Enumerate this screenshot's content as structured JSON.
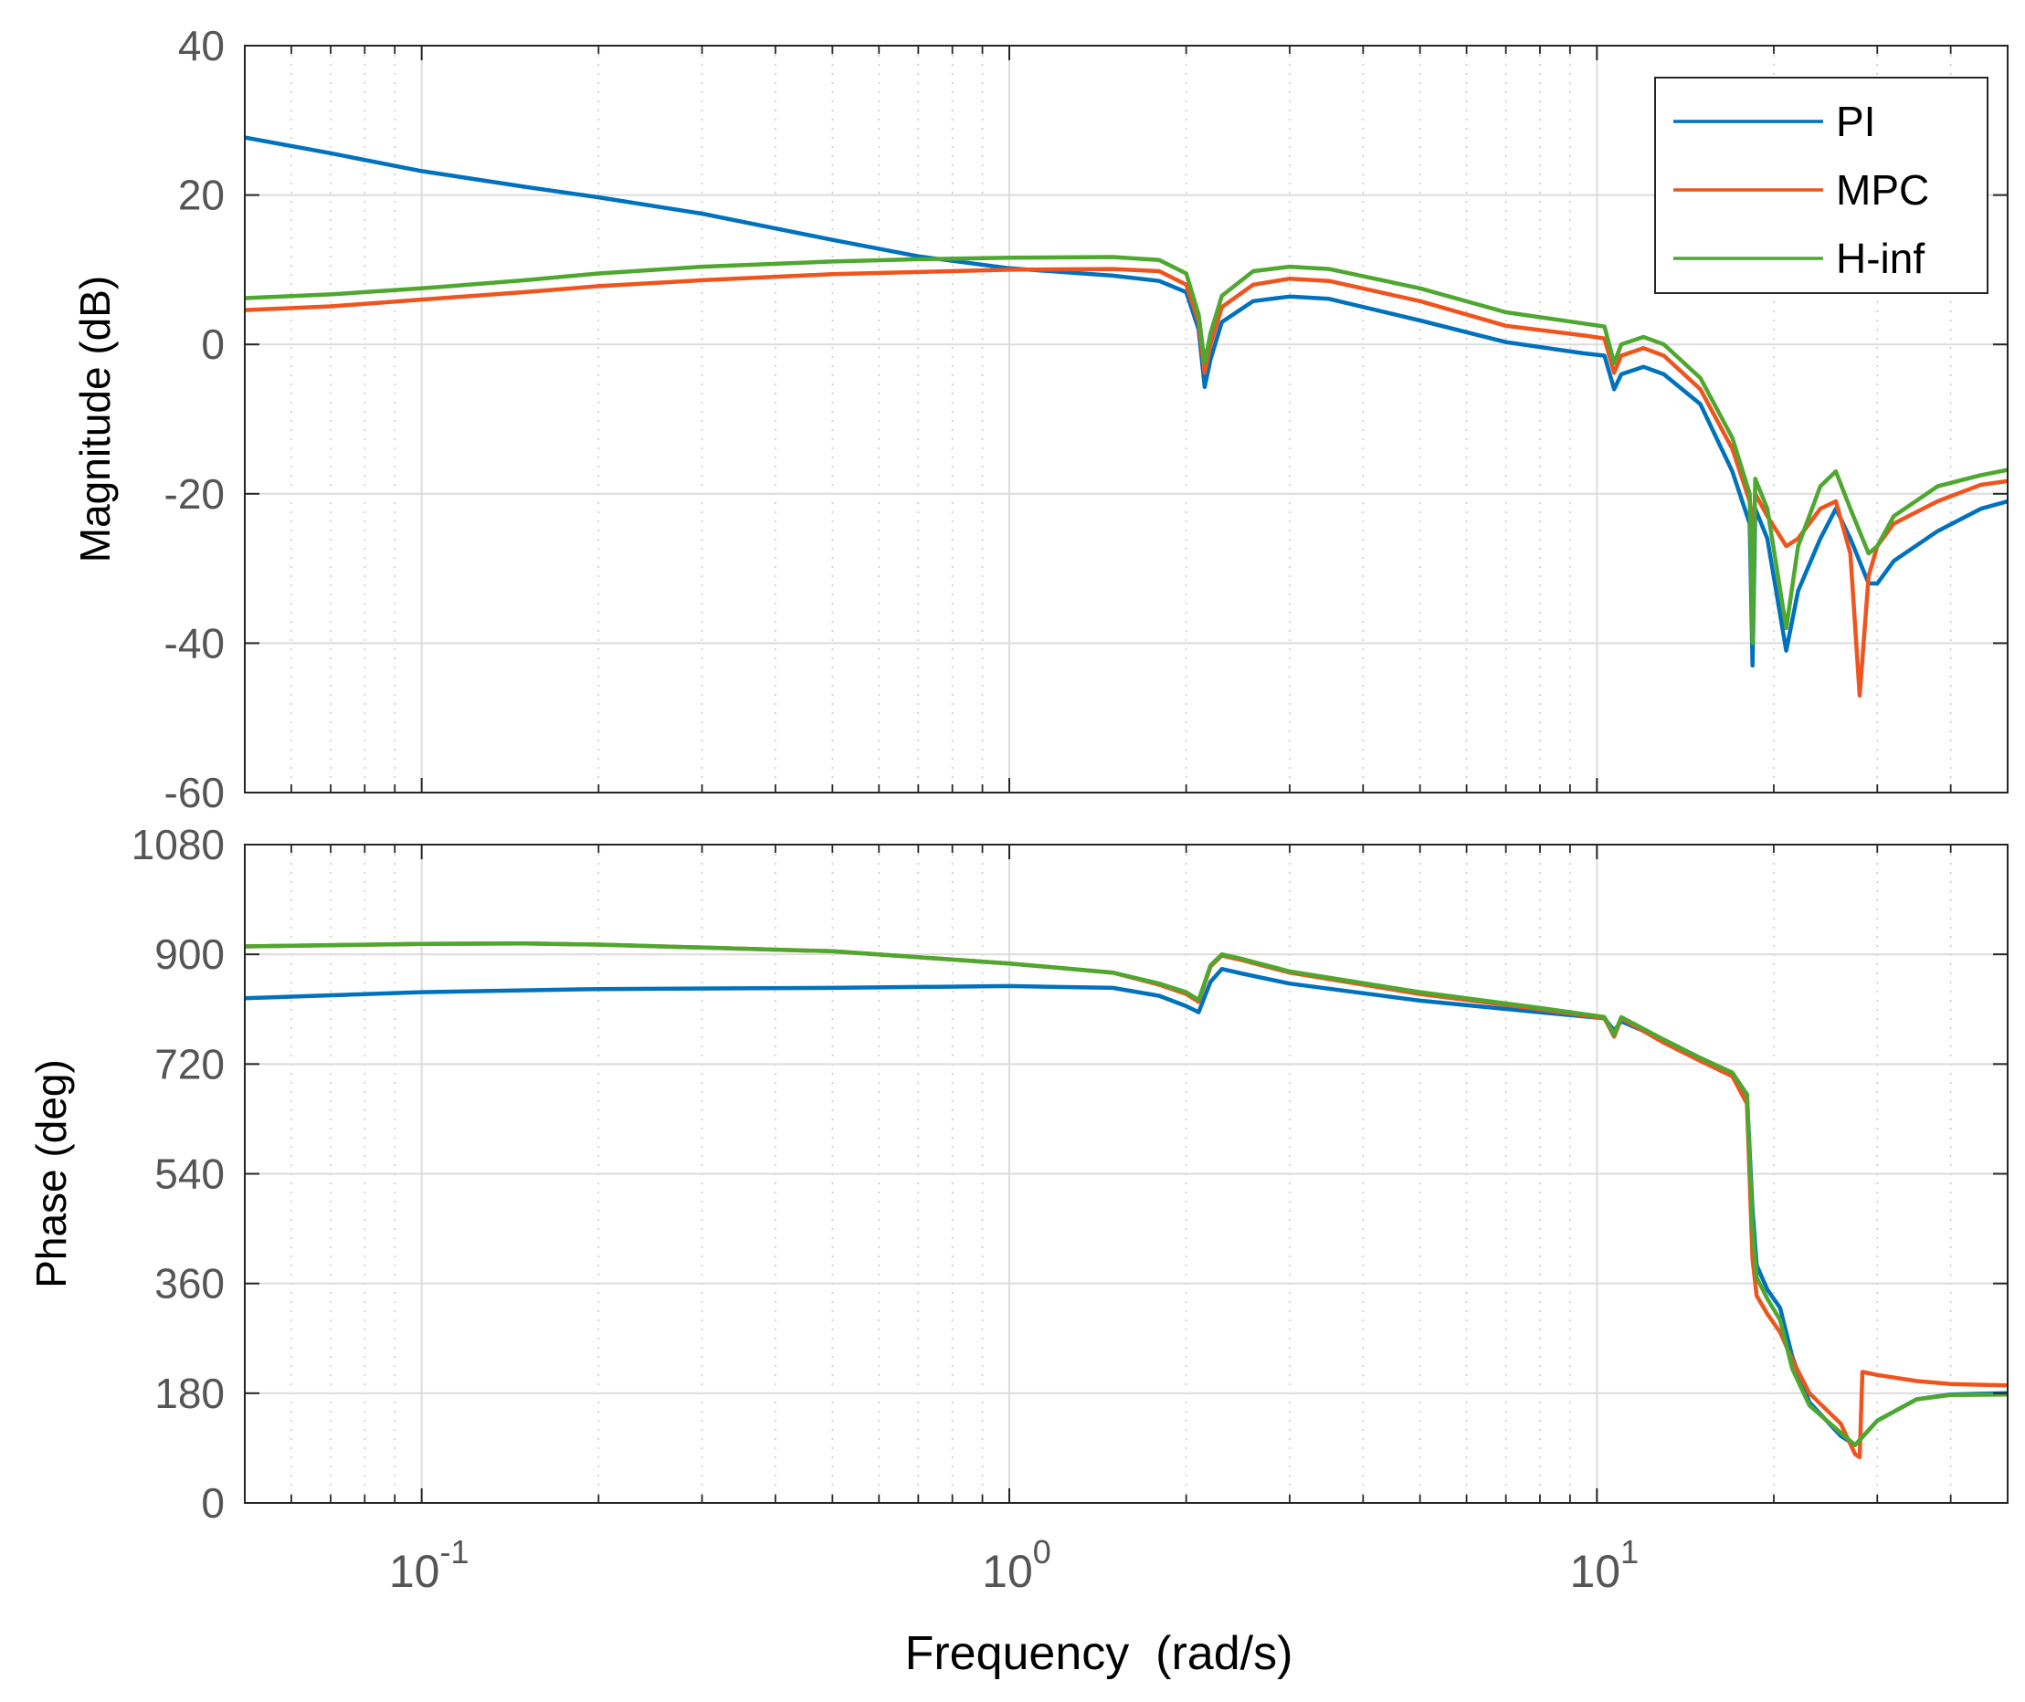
{
  "colors": {
    "series": [
      "#0072BD",
      "#F0541E",
      "#4EA72E"
    ],
    "axis": "#262626",
    "grid_major": "#dcdcdc",
    "grid_minor": "#c8c8c8",
    "tick_text": "#555555"
  },
  "chart_data": [
    {
      "type": "line",
      "xscale": "log",
      "xlim": [
        0.05,
        50
      ],
      "ylim": [
        -60,
        40
      ],
      "title": "",
      "xlabel": "",
      "ylabel": "Magnitude (dB)",
      "yticks": [
        40,
        20,
        0,
        -20,
        -40,
        -60
      ],
      "yticklabels": [
        "40",
        "20",
        "0",
        "-20",
        "-40",
        "-60"
      ],
      "grid": true,
      "legend_position": "top-right",
      "series": [
        {
          "name": "PI",
          "points": [
            [
              0.05,
              27.7
            ],
            [
              0.07,
              25.6
            ],
            [
              0.1,
              23.2
            ],
            [
              0.15,
              21.1
            ],
            [
              0.2,
              19.7
            ],
            [
              0.3,
              17.5
            ],
            [
              0.5,
              14.0
            ],
            [
              0.7,
              11.8
            ],
            [
              1.0,
              10.2
            ],
            [
              1.5,
              9.2
            ],
            [
              1.8,
              8.5
            ],
            [
              2.0,
              7.0
            ],
            [
              2.1,
              2.0
            ],
            [
              2.15,
              -5.7
            ],
            [
              2.2,
              -2.0
            ],
            [
              2.3,
              3.0
            ],
            [
              2.6,
              5.8
            ],
            [
              3.0,
              6.4
            ],
            [
              3.5,
              6.1
            ],
            [
              5.0,
              3.2
            ],
            [
              7.0,
              0.3
            ],
            [
              9.5,
              -1.2
            ],
            [
              10.3,
              -1.5
            ],
            [
              10.7,
              -6.0
            ],
            [
              11.0,
              -4.0
            ],
            [
              12.0,
              -3.0
            ],
            [
              13.0,
              -4.0
            ],
            [
              15.0,
              -8.0
            ],
            [
              17.0,
              -17.0
            ],
            [
              18.2,
              -24.0
            ],
            [
              18.4,
              -43.0
            ],
            [
              18.6,
              -22.0
            ],
            [
              19.5,
              -26.0
            ],
            [
              21.0,
              -41.0
            ],
            [
              22.0,
              -33.0
            ],
            [
              24.0,
              -26.0
            ],
            [
              25.5,
              -22.0
            ],
            [
              27.0,
              -26.0
            ],
            [
              29.0,
              -32.0
            ],
            [
              30.0,
              -32.0
            ],
            [
              32.0,
              -29.0
            ],
            [
              38.0,
              -25.0
            ],
            [
              45.0,
              -22.0
            ],
            [
              50.0,
              -21.0
            ]
          ]
        },
        {
          "name": "MPC",
          "points": [
            [
              0.05,
              4.6
            ],
            [
              0.07,
              5.1
            ],
            [
              0.1,
              6.0
            ],
            [
              0.15,
              7.0
            ],
            [
              0.2,
              7.8
            ],
            [
              0.3,
              8.6
            ],
            [
              0.5,
              9.4
            ],
            [
              0.7,
              9.7
            ],
            [
              1.0,
              10.0
            ],
            [
              1.5,
              10.1
            ],
            [
              1.8,
              9.8
            ],
            [
              2.0,
              8.0
            ],
            [
              2.1,
              3.0
            ],
            [
              2.15,
              -3.8
            ],
            [
              2.2,
              0.0
            ],
            [
              2.3,
              5.0
            ],
            [
              2.6,
              8.0
            ],
            [
              3.0,
              8.8
            ],
            [
              3.5,
              8.5
            ],
            [
              5.0,
              5.8
            ],
            [
              7.0,
              2.5
            ],
            [
              9.5,
              1.2
            ],
            [
              10.3,
              0.8
            ],
            [
              10.7,
              -3.8
            ],
            [
              11.0,
              -1.5
            ],
            [
              12.0,
              -0.5
            ],
            [
              13.0,
              -1.5
            ],
            [
              15.0,
              -6.0
            ],
            [
              17.0,
              -14.0
            ],
            [
              18.2,
              -21.0
            ],
            [
              18.4,
              -26.0
            ],
            [
              18.6,
              -20.0
            ],
            [
              19.5,
              -23.0
            ],
            [
              21.0,
              -27.0
            ],
            [
              22.0,
              -26.0
            ],
            [
              24.0,
              -22.0
            ],
            [
              25.5,
              -21.0
            ],
            [
              27.0,
              -28.0
            ],
            [
              28.0,
              -47.0
            ],
            [
              29.0,
              -31.0
            ],
            [
              30.0,
              -27.0
            ],
            [
              32.0,
              -24.0
            ],
            [
              38.0,
              -21.0
            ],
            [
              45.0,
              -18.8
            ],
            [
              50.0,
              -18.3
            ]
          ]
        },
        {
          "name": "H-inf",
          "points": [
            [
              0.05,
              6.2
            ],
            [
              0.07,
              6.7
            ],
            [
              0.1,
              7.5
            ],
            [
              0.15,
              8.6
            ],
            [
              0.2,
              9.5
            ],
            [
              0.3,
              10.4
            ],
            [
              0.5,
              11.1
            ],
            [
              0.7,
              11.4
            ],
            [
              1.0,
              11.6
            ],
            [
              1.5,
              11.7
            ],
            [
              1.8,
              11.3
            ],
            [
              2.0,
              9.5
            ],
            [
              2.1,
              4.0
            ],
            [
              2.15,
              -2.5
            ],
            [
              2.2,
              1.5
            ],
            [
              2.3,
              6.5
            ],
            [
              2.6,
              9.8
            ],
            [
              3.0,
              10.4
            ],
            [
              3.5,
              10.1
            ],
            [
              5.0,
              7.5
            ],
            [
              7.0,
              4.3
            ],
            [
              9.5,
              2.8
            ],
            [
              10.3,
              2.4
            ],
            [
              10.7,
              -2.5
            ],
            [
              11.0,
              0.0
            ],
            [
              12.0,
              1.0
            ],
            [
              13.0,
              0.0
            ],
            [
              15.0,
              -4.5
            ],
            [
              17.0,
              -12.5
            ],
            [
              18.2,
              -20.0
            ],
            [
              18.4,
              -40.0
            ],
            [
              18.6,
              -18.0
            ],
            [
              19.5,
              -22.0
            ],
            [
              21.0,
              -38.0
            ],
            [
              22.0,
              -27.0
            ],
            [
              24.0,
              -19.0
            ],
            [
              25.5,
              -17.0
            ],
            [
              27.0,
              -22.0
            ],
            [
              29.0,
              -28.0
            ],
            [
              30.0,
              -27.0
            ],
            [
              32.0,
              -23.0
            ],
            [
              38.0,
              -19.0
            ],
            [
              45.0,
              -17.5
            ],
            [
              50.0,
              -16.8
            ]
          ]
        }
      ]
    },
    {
      "type": "line",
      "xscale": "log",
      "xlim": [
        0.05,
        50
      ],
      "ylim": [
        0,
        1080
      ],
      "title": "",
      "xlabel": "Frequency  (rad/s)",
      "ylabel": "Phase (deg)",
      "yticks": [
        1080,
        900,
        720,
        540,
        360,
        180,
        0
      ],
      "yticklabels": [
        "1080",
        "900",
        "720",
        "540",
        "360",
        "180",
        "0"
      ],
      "xticks": [
        0.1,
        1,
        10
      ],
      "xticklabels": [
        {
          "base": "10",
          "exp": "-1"
        },
        {
          "base": "10",
          "exp": "0"
        },
        {
          "base": "10",
          "exp": "1"
        }
      ],
      "grid": true,
      "series": [
        {
          "name": "PI",
          "points": [
            [
              0.05,
              828
            ],
            [
              0.1,
              838
            ],
            [
              0.2,
              843
            ],
            [
              0.5,
              845
            ],
            [
              1.0,
              848
            ],
            [
              1.5,
              845
            ],
            [
              1.8,
              832
            ],
            [
              2.0,
              815
            ],
            [
              2.1,
              805
            ],
            [
              2.2,
              855
            ],
            [
              2.3,
              876
            ],
            [
              2.5,
              868
            ],
            [
              3.0,
              852
            ],
            [
              5.0,
              824
            ],
            [
              8.0,
              805
            ],
            [
              10.3,
              795
            ],
            [
              10.7,
              775
            ],
            [
              11.0,
              790
            ],
            [
              13.0,
              760
            ],
            [
              15.0,
              730
            ],
            [
              17.0,
              705
            ],
            [
              18.0,
              670
            ],
            [
              18.4,
              480
            ],
            [
              18.7,
              390
            ],
            [
              19.5,
              350
            ],
            [
              20.5,
              320
            ],
            [
              21.5,
              240
            ],
            [
              23.0,
              165
            ],
            [
              26.0,
              110
            ],
            [
              27.5,
              95
            ],
            [
              30.0,
              135
            ],
            [
              35.0,
              170
            ],
            [
              40.0,
              178
            ],
            [
              50.0,
              180
            ]
          ]
        },
        {
          "name": "MPC",
          "points": [
            [
              0.05,
              913
            ],
            [
              0.1,
              917
            ],
            [
              0.15,
              918
            ],
            [
              0.2,
              916
            ],
            [
              0.5,
              905
            ],
            [
              1.0,
              885
            ],
            [
              1.5,
              870
            ],
            [
              1.8,
              850
            ],
            [
              2.0,
              835
            ],
            [
              2.1,
              822
            ],
            [
              2.2,
              880
            ],
            [
              2.3,
              898
            ],
            [
              2.5,
              890
            ],
            [
              3.0,
              870
            ],
            [
              5.0,
              835
            ],
            [
              8.0,
              810
            ],
            [
              10.3,
              795
            ],
            [
              10.7,
              765
            ],
            [
              11.0,
              795
            ],
            [
              13.0,
              755
            ],
            [
              15.0,
              725
            ],
            [
              17.0,
              700
            ],
            [
              18.0,
              655
            ],
            [
              18.4,
              400
            ],
            [
              18.7,
              340
            ],
            [
              19.5,
              310
            ],
            [
              20.5,
              280
            ],
            [
              21.5,
              235
            ],
            [
              23.0,
              180
            ],
            [
              26.0,
              130
            ],
            [
              27.5,
              80
            ],
            [
              28.0,
              75
            ],
            [
              28.3,
              215
            ],
            [
              30.0,
              210
            ],
            [
              35.0,
              200
            ],
            [
              40.0,
              195
            ],
            [
              50.0,
              193
            ]
          ]
        },
        {
          "name": "H-inf",
          "points": [
            [
              0.05,
              913
            ],
            [
              0.1,
              917
            ],
            [
              0.15,
              918
            ],
            [
              0.2,
              916
            ],
            [
              0.5,
              905
            ],
            [
              1.0,
              885
            ],
            [
              1.5,
              870
            ],
            [
              1.8,
              852
            ],
            [
              2.0,
              838
            ],
            [
              2.1,
              825
            ],
            [
              2.2,
              882
            ],
            [
              2.3,
              900
            ],
            [
              2.5,
              892
            ],
            [
              3.0,
              872
            ],
            [
              5.0,
              838
            ],
            [
              8.0,
              812
            ],
            [
              10.3,
              797
            ],
            [
              10.7,
              768
            ],
            [
              11.0,
              797
            ],
            [
              13.0,
              760
            ],
            [
              15.0,
              730
            ],
            [
              17.0,
              706
            ],
            [
              18.0,
              670
            ],
            [
              18.4,
              450
            ],
            [
              18.7,
              370
            ],
            [
              19.5,
              335
            ],
            [
              20.5,
              300
            ],
            [
              21.5,
              220
            ],
            [
              23.0,
              160
            ],
            [
              26.0,
              115
            ],
            [
              27.5,
              95
            ],
            [
              30.0,
              135
            ],
            [
              35.0,
              170
            ],
            [
              40.0,
              177
            ],
            [
              50.0,
              178
            ]
          ]
        }
      ]
    }
  ]
}
